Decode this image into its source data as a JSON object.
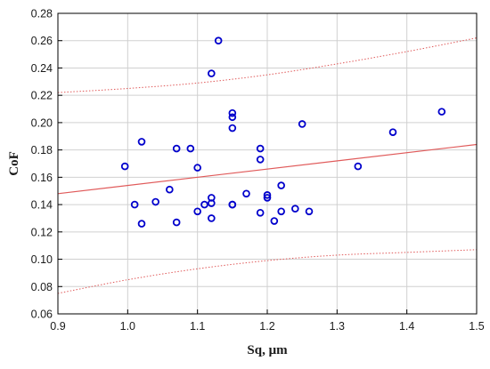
{
  "chart_data": {
    "type": "scatter",
    "title": "",
    "xlabel": "Sq, μm",
    "ylabel": "CoF",
    "xlim": [
      0.9,
      1.5
    ],
    "ylim": [
      0.06,
      0.28
    ],
    "x_ticks": [
      "0.9",
      "1.0",
      "1.1",
      "1.2",
      "1.3",
      "1.4",
      "1.5"
    ],
    "y_ticks": [
      "0.06",
      "0.08",
      "0.10",
      "0.12",
      "0.14",
      "0.16",
      "0.18",
      "0.20",
      "0.22",
      "0.24",
      "0.26",
      "0.28"
    ],
    "grid": true,
    "legend": "none",
    "colors": {
      "points": "#0000cc",
      "fit_line": "#e05a5a",
      "confidence_band": "#e05a5a",
      "grid": "#d0d0d0",
      "frame": "#000000"
    },
    "series": [
      {
        "kind": "points",
        "x": [
          0.996,
          1.01,
          1.02,
          1.02,
          1.04,
          1.06,
          1.07,
          1.07,
          1.09,
          1.1,
          1.1,
          1.11,
          1.12,
          1.12,
          1.12,
          1.12,
          1.13,
          1.15,
          1.15,
          1.15,
          1.15,
          1.15,
          1.17,
          1.19,
          1.19,
          1.19,
          1.2,
          1.2,
          1.21,
          1.22,
          1.22,
          1.24,
          1.25,
          1.26,
          1.33,
          1.38,
          1.45
        ],
        "y": [
          0.168,
          0.14,
          0.186,
          0.126,
          0.142,
          0.151,
          0.181,
          0.127,
          0.181,
          0.167,
          0.135,
          0.14,
          0.236,
          0.145,
          0.141,
          0.13,
          0.26,
          0.207,
          0.204,
          0.196,
          0.14,
          0.14,
          0.148,
          0.181,
          0.173,
          0.134,
          0.147,
          0.145,
          0.128,
          0.154,
          0.135,
          0.137,
          0.199,
          0.135,
          0.168,
          0.193,
          0.208
        ]
      },
      {
        "kind": "fit_line",
        "x": [
          0.9,
          1.5
        ],
        "y": [
          0.148,
          0.184
        ]
      },
      {
        "kind": "upper_confidence",
        "x": [
          0.9,
          1.0,
          1.1,
          1.2,
          1.3,
          1.4,
          1.5
        ],
        "y": [
          0.222,
          0.225,
          0.229,
          0.235,
          0.243,
          0.252,
          0.262
        ]
      },
      {
        "kind": "lower_confidence",
        "x": [
          0.9,
          1.0,
          1.1,
          1.2,
          1.3,
          1.4,
          1.5
        ],
        "y": [
          0.075,
          0.085,
          0.093,
          0.099,
          0.103,
          0.105,
          0.107
        ]
      }
    ]
  }
}
